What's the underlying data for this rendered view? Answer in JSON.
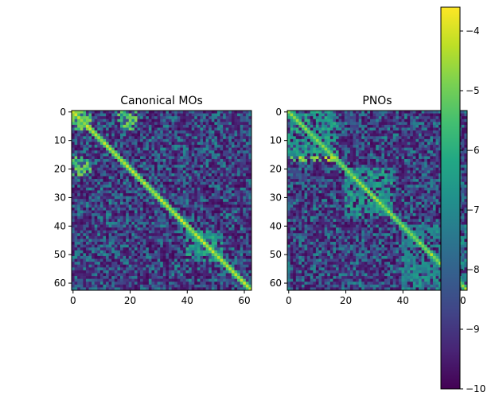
{
  "chart_data": [
    {
      "type": "heatmap",
      "title": "Canonical MOs",
      "xlabel": "",
      "ylabel": "",
      "n": 63,
      "xlim": [
        0,
        62
      ],
      "ylim": [
        62,
        0
      ],
      "xticks": [
        0,
        20,
        40,
        60
      ],
      "yticks": [
        0,
        10,
        20,
        30,
        40,
        50,
        60
      ],
      "xtick_labels": [
        "0",
        "20",
        "40",
        "60"
      ],
      "ytick_labels": [
        "0",
        "10",
        "20",
        "30",
        "40",
        "50",
        "60"
      ],
      "value_range": [
        -10,
        -3.6
      ],
      "diagonal_value": -4.3,
      "blocks": [
        {
          "rows": [
            0,
            6
          ],
          "cols": [
            0,
            6
          ],
          "value": -5.4
        },
        {
          "rows": [
            16,
            22
          ],
          "cols": [
            0,
            6
          ],
          "value": -5.4
        },
        {
          "rows": [
            0,
            6
          ],
          "cols": [
            16,
            22
          ],
          "value": -5.4
        },
        {
          "rows": [
            42,
            52
          ],
          "cols": [
            40,
            52
          ],
          "value": -6.6
        }
      ]
    },
    {
      "type": "heatmap",
      "title": "PNOs",
      "xlabel": "",
      "ylabel": "",
      "n": 63,
      "xlim": [
        0,
        62
      ],
      "ylim": [
        62,
        0
      ],
      "xticks": [
        0,
        20,
        40,
        60
      ],
      "yticks": [
        0,
        10,
        20,
        30,
        40,
        50,
        60
      ],
      "xtick_labels": [
        "0",
        "20",
        "40",
        "60"
      ],
      "ytick_labels": [
        "0",
        "10",
        "20",
        "30",
        "40",
        "50",
        "60"
      ],
      "value_range": [
        -10,
        -3.6
      ],
      "diagonal_value": -4.6,
      "blocks": [
        {
          "rows": [
            0,
            17
          ],
          "cols": [
            0,
            17
          ],
          "value": -6.6
        },
        {
          "rows": [
            16,
            17
          ],
          "cols": [
            0,
            17
          ],
          "value": -4.8
        },
        {
          "rows": [
            20,
            36
          ],
          "cols": [
            20,
            36
          ],
          "value": -6.6
        },
        {
          "rows": [
            40,
            62
          ],
          "cols": [
            40,
            62
          ],
          "value": -7.0
        }
      ]
    }
  ],
  "colorbar": {
    "range": [
      -10,
      -3.6
    ],
    "ticks": [
      -10,
      -9,
      -8,
      -7,
      -6,
      -5,
      -4
    ],
    "tick_labels": [
      "−10",
      "−9",
      "−8",
      "−7",
      "−6",
      "−5",
      "−4"
    ],
    "colormap": "viridis"
  }
}
